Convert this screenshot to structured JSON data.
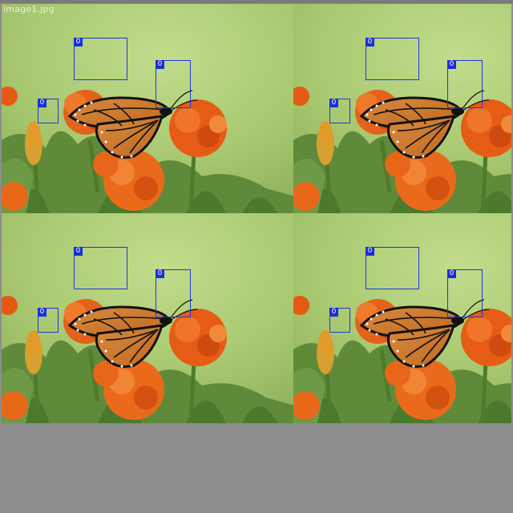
{
  "filename": "image1.jpg",
  "class_label": "0",
  "tiles": [
    {
      "name": "tile-top-left"
    },
    {
      "name": "tile-top-right"
    },
    {
      "name": "tile-bottom-left"
    },
    {
      "name": "tile-bottom-right"
    }
  ],
  "colors": {
    "box": "#2236d6",
    "label_bg": "#1a2fd8",
    "background": "#8d8d8d"
  }
}
